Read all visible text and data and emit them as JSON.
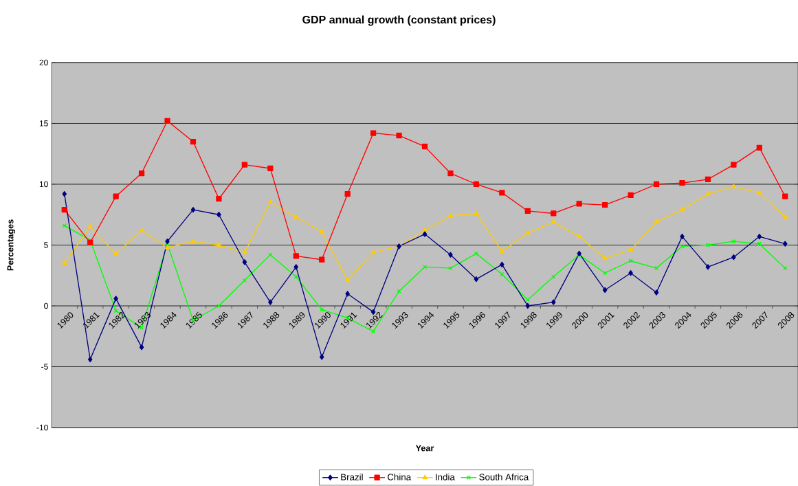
{
  "chart_data": {
    "type": "line",
    "title": "GDP annual growth (constant prices)",
    "xlabel": "Year",
    "ylabel": "Percentages",
    "categories": [
      "1980",
      "1981",
      "1982",
      "1983",
      "1984",
      "1985",
      "1986",
      "1987",
      "1988",
      "1989",
      "1990",
      "1991",
      "1992",
      "1993",
      "1994",
      "1995",
      "1996",
      "1997",
      "1998",
      "1999",
      "2000",
      "2001",
      "2002",
      "2003",
      "2004",
      "2005",
      "2006",
      "2007",
      "2008"
    ],
    "series": [
      {
        "name": "Brazil",
        "color": "#000080",
        "marker": "diamond",
        "values": [
          9.2,
          -4.4,
          0.6,
          -3.4,
          5.3,
          7.9,
          7.5,
          3.6,
          0.3,
          3.2,
          -4.2,
          1.0,
          -0.5,
          4.9,
          5.9,
          4.2,
          2.2,
          3.4,
          0.0,
          0.3,
          4.3,
          1.3,
          2.7,
          1.1,
          5.7,
          3.2,
          4.0,
          5.7,
          5.1
        ]
      },
      {
        "name": "China",
        "color": "#ff0000",
        "marker": "square",
        "values": [
          7.9,
          5.2,
          9.0,
          10.9,
          15.2,
          13.5,
          8.8,
          11.6,
          11.3,
          4.1,
          3.8,
          9.2,
          14.2,
          14.0,
          13.1,
          10.9,
          10.0,
          9.3,
          7.8,
          7.6,
          8.4,
          8.3,
          9.1,
          10.0,
          10.1,
          10.4,
          11.6,
          13.0,
          9.0
        ]
      },
      {
        "name": "India",
        "color": "#ffcc00",
        "marker": "triangle",
        "values": [
          3.5,
          6.5,
          4.3,
          6.2,
          4.8,
          5.3,
          5.0,
          4.4,
          8.5,
          7.3,
          6.1,
          2.1,
          4.4,
          4.9,
          6.2,
          7.4,
          7.6,
          4.5,
          6.0,
          6.9,
          5.7,
          3.9,
          4.6,
          6.9,
          7.9,
          9.2,
          9.8,
          9.3,
          7.3
        ]
      },
      {
        "name": "South Africa",
        "color": "#00ff00",
        "marker": "cross",
        "values": [
          6.6,
          5.4,
          -0.4,
          -1.8,
          5.1,
          -1.2,
          0.0,
          2.1,
          4.2,
          2.4,
          -0.3,
          -1.0,
          -2.1,
          1.2,
          3.2,
          3.1,
          4.3,
          2.6,
          0.5,
          2.4,
          4.2,
          2.7,
          3.7,
          3.1,
          4.9,
          5.0,
          5.3,
          5.1,
          3.1
        ]
      }
    ],
    "ylim": [
      -10,
      20
    ],
    "yticks": [
      -10,
      -5,
      0,
      5,
      10,
      15,
      20
    ],
    "grid": "y",
    "legend": "bottom",
    "line_style": "solid"
  }
}
